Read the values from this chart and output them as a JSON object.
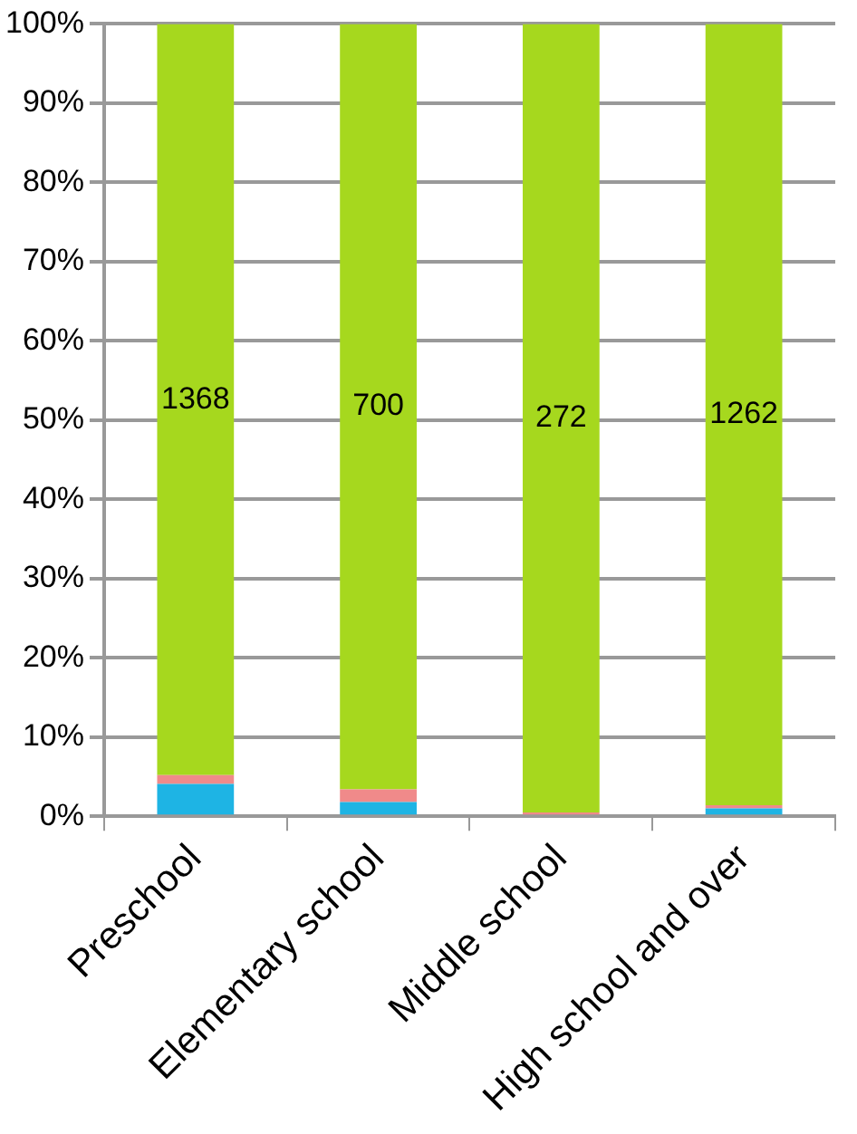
{
  "chart_data": {
    "type": "bar",
    "stacked": true,
    "categories": [
      "Preschool",
      "Elementary school",
      "Middle school",
      "High school and over"
    ],
    "series": [
      {
        "color": "#1eb4e4",
        "values": [
          4.1,
          1.8,
          0,
          1.0
        ]
      },
      {
        "color": "#f08a8a",
        "values": [
          1.1,
          1.6,
          0.5,
          0.4
        ]
      },
      {
        "color": "#a6d81e",
        "values": [
          94.8,
          96.6,
          99.5,
          98.6
        ]
      }
    ],
    "annotations": [
      "1368",
      "700",
      "272",
      "1262"
    ],
    "ylim": [
      0,
      100
    ],
    "yticks": [
      {
        "value": 0,
        "label": "0%"
      },
      {
        "value": 10,
        "label": "10%"
      },
      {
        "value": 20,
        "label": "20%"
      },
      {
        "value": 30,
        "label": "30%"
      },
      {
        "value": 40,
        "label": "40%"
      },
      {
        "value": 50,
        "label": "50%"
      },
      {
        "value": 60,
        "label": "60%"
      },
      {
        "value": 70,
        "label": "70%"
      },
      {
        "value": 80,
        "label": "80%"
      },
      {
        "value": 90,
        "label": "90%"
      },
      {
        "value": 100,
        "label": "100%"
      }
    ],
    "grid": "y",
    "legend": false
  }
}
